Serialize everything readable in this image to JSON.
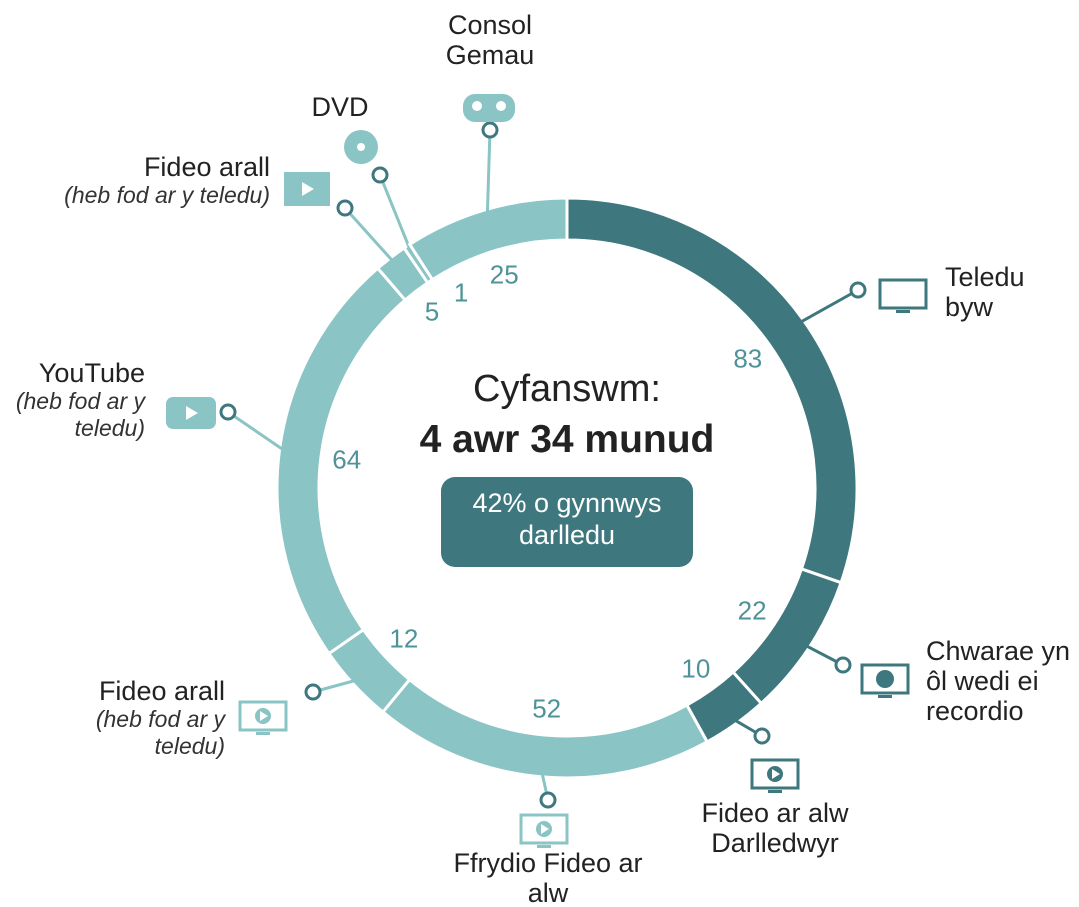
{
  "chart_data": {
    "type": "donut",
    "title": "Cyfanswm:",
    "subtitle": "4 awr 34 munud",
    "annotation": "42% o gynnwys darlledu",
    "categories": [
      "Teledu byw",
      "Chwarae yn ôl wedi ei recordio",
      "Fideo ar alw Darlledwyr",
      "Ffrydio Fideo ar alw",
      "Fideo arall",
      "YouTube",
      "Fideo arall",
      "DVD",
      "Consol Gemau"
    ],
    "notes": {
      "4": "(heb fod ar y teledu)",
      "5": "(heb fod ar y teledu)",
      "6": "(heb fod ar y teledu)"
    },
    "values": [
      83,
      22,
      10,
      52,
      12,
      64,
      5,
      1,
      25
    ],
    "colors": [
      "#3e787e",
      "#3e787e",
      "#3e787e",
      "#8ac4c5",
      "#8ac4c5",
      "#8ac4c5",
      "#8ac4c5",
      "#8ac4c5",
      "#8ac4c5"
    ]
  }
}
